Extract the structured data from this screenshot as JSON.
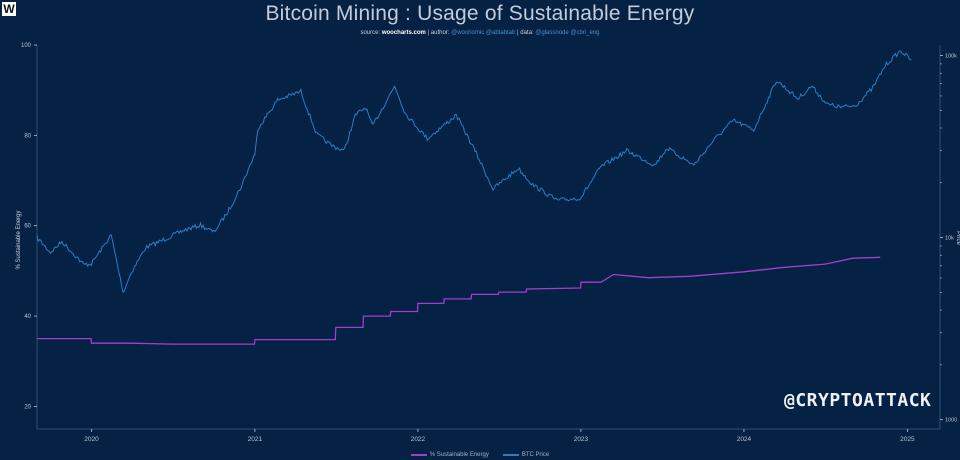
{
  "header": {
    "logo_text": "W",
    "title": "Bitcoin Mining : Usage of Sustainable Energy",
    "credits": {
      "source_label": "source:",
      "source_value": "woocharts.com",
      "author_label": "author:",
      "author_value": "@woonomic @abtabtab",
      "data_label": "data:",
      "data_value": "@glassnode @cbri_eng"
    }
  },
  "watermark": "@CRYPTOATTACK",
  "colors": {
    "background": "#052143",
    "sustainable": "#a23fd1",
    "btc_price": "#2b7fc6",
    "axis_text": "#b9c6d6"
  },
  "chart_data": {
    "type": "line",
    "title": "Bitcoin Mining : Usage of Sustainable Energy",
    "ylabel": "% Sustainable Energy",
    "ylabel_right": "Price",
    "ylim": [
      15,
      100
    ],
    "yticks": [
      20,
      40,
      60,
      80,
      100
    ],
    "y2_scale": "log",
    "y2_ticks": [
      "1000",
      "10k",
      "100k"
    ],
    "xlim": [
      "2019-09-01",
      "2025-03-15"
    ],
    "xticks": [
      "2020",
      "2021",
      "2022",
      "2023",
      "2024",
      "2025"
    ],
    "grid": false,
    "legend_position": "bottom-center",
    "series": [
      {
        "name": "% Sustainable Energy",
        "axis": "left",
        "points": [
          [
            "2019-09-01",
            35.0
          ],
          [
            "2019-12-31",
            35.0
          ],
          [
            "2020-01-01",
            34.0
          ],
          [
            "2020-03-31",
            34.0
          ],
          [
            "2020-06-30",
            33.8
          ],
          [
            "2020-12-31",
            33.8
          ],
          [
            "2021-01-01",
            34.8
          ],
          [
            "2021-06-30",
            34.8
          ],
          [
            "2021-07-01",
            37.5
          ],
          [
            "2021-08-31",
            37.5
          ],
          [
            "2021-09-01",
            40.0
          ],
          [
            "2021-10-31",
            40.0
          ],
          [
            "2021-11-01",
            41.0
          ],
          [
            "2021-12-31",
            41.0
          ],
          [
            "2022-01-01",
            42.8
          ],
          [
            "2022-02-28",
            42.8
          ],
          [
            "2022-03-01",
            43.8
          ],
          [
            "2022-04-30",
            43.8
          ],
          [
            "2022-05-01",
            44.8
          ],
          [
            "2022-06-30",
            44.8
          ],
          [
            "2022-07-01",
            45.3
          ],
          [
            "2022-08-31",
            45.3
          ],
          [
            "2022-09-01",
            46.0
          ],
          [
            "2022-12-31",
            46.2
          ],
          [
            "2023-01-01",
            47.5
          ],
          [
            "2023-02-15",
            47.5
          ],
          [
            "2023-03-15",
            49.2
          ],
          [
            "2023-06-01",
            48.5
          ],
          [
            "2023-09-01",
            48.8
          ],
          [
            "2024-01-01",
            49.8
          ],
          [
            "2024-04-01",
            50.8
          ],
          [
            "2024-07-01",
            51.5
          ],
          [
            "2024-09-01",
            52.8
          ],
          [
            "2024-11-01",
            53.0
          ]
        ]
      },
      {
        "name": "BTC Price",
        "axis": "right",
        "points": [
          [
            "2019-09-01",
            10000
          ],
          [
            "2019-10-01",
            8300
          ],
          [
            "2019-10-27",
            9500
          ],
          [
            "2019-12-15",
            7100
          ],
          [
            "2020-01-01",
            7200
          ],
          [
            "2020-02-14",
            10300
          ],
          [
            "2020-03-12",
            5000
          ],
          [
            "2020-03-31",
            6500
          ],
          [
            "2020-05-01",
            8800
          ],
          [
            "2020-06-01",
            9500
          ],
          [
            "2020-07-27",
            11000
          ],
          [
            "2020-09-01",
            11700
          ],
          [
            "2020-10-01",
            10700
          ],
          [
            "2020-11-01",
            13800
          ],
          [
            "2020-12-01",
            19000
          ],
          [
            "2021-01-01",
            29000
          ],
          [
            "2021-01-08",
            40000
          ],
          [
            "2021-02-21",
            57000
          ],
          [
            "2021-04-14",
            63500
          ],
          [
            "2021-05-19",
            37000
          ],
          [
            "2021-06-22",
            32000
          ],
          [
            "2021-07-20",
            30000
          ],
          [
            "2021-08-14",
            47000
          ],
          [
            "2021-09-06",
            52000
          ],
          [
            "2021-09-21",
            41000
          ],
          [
            "2021-11-10",
            68000
          ],
          [
            "2021-12-04",
            48000
          ],
          [
            "2022-01-22",
            35000
          ],
          [
            "2022-03-28",
            47000
          ],
          [
            "2022-05-12",
            29000
          ],
          [
            "2022-06-18",
            18500
          ],
          [
            "2022-08-14",
            24000
          ],
          [
            "2022-09-15",
            19500
          ],
          [
            "2022-11-09",
            16000
          ],
          [
            "2022-12-31",
            16500
          ],
          [
            "2023-02-15",
            24500
          ],
          [
            "2023-04-14",
            30000
          ],
          [
            "2023-06-15",
            25000
          ],
          [
            "2023-07-13",
            31000
          ],
          [
            "2023-09-11",
            25000
          ],
          [
            "2023-10-24",
            34000
          ],
          [
            "2023-12-08",
            44000
          ],
          [
            "2024-01-23",
            39000
          ],
          [
            "2024-03-14",
            73000
          ],
          [
            "2024-05-01",
            58000
          ],
          [
            "2024-06-01",
            68000
          ],
          [
            "2024-07-05",
            54000
          ],
          [
            "2024-08-05",
            52000
          ],
          [
            "2024-09-06",
            53000
          ],
          [
            "2024-10-15",
            66000
          ],
          [
            "2024-11-12",
            88000
          ],
          [
            "2024-12-05",
            100000
          ],
          [
            "2024-12-17",
            106000
          ],
          [
            "2025-01-10",
            95000
          ]
        ]
      }
    ]
  }
}
